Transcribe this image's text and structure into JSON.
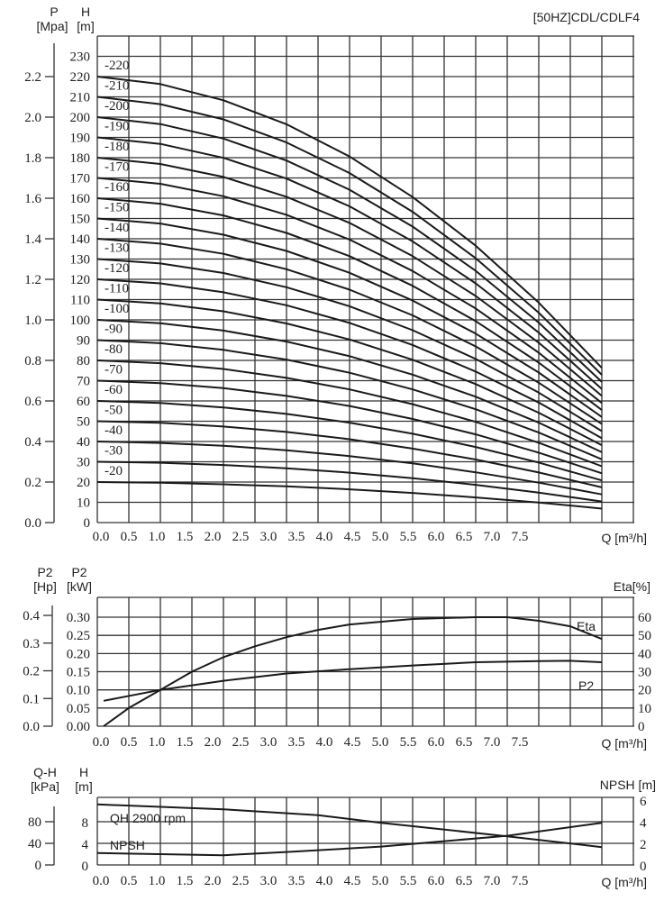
{
  "chart_data": [
    {
      "type": "line",
      "title": "[50HZ]CDL/CDLF4",
      "xlabel": "Q [m³/h]",
      "ylabel_left_outer": {
        "symbol": "P",
        "unit": "[Mpa]"
      },
      "ylabel_left": {
        "symbol": "H",
        "unit": "[m]"
      },
      "x_ticks": [
        "0.0",
        "0.5",
        "1.0",
        "1.5",
        "2.0",
        "2.5",
        "3.0",
        "3.5",
        "4.0",
        "4.5",
        "5.0",
        "5.5",
        "6.0",
        "6.5",
        "7.0",
        "7.5"
      ],
      "h_ticks": [
        "0",
        "10",
        "20",
        "30",
        "40",
        "50",
        "60",
        "70",
        "80",
        "90",
        "100",
        "110",
        "120",
        "130",
        "140",
        "150",
        "160",
        "170",
        "180",
        "190",
        "200",
        "210",
        "220",
        "230"
      ],
      "p_ticks": [
        "0.0",
        "0.2",
        "0.4",
        "0.6",
        "0.8",
        "1.0",
        "1.2",
        "1.4",
        "1.6",
        "1.8",
        "2.0",
        "2.2"
      ],
      "xlim": [
        0,
        8.5
      ],
      "ylim": [
        0,
        240
      ],
      "grid": true,
      "x": [
        0,
        1,
        2,
        3,
        4,
        5,
        6,
        7,
        8
      ],
      "series": [
        {
          "name": "-20",
          "values": [
            20,
            19.7,
            18.9,
            17.9,
            16.4,
            14.6,
            12.4,
            9.9,
            6.9
          ]
        },
        {
          "name": "-30",
          "values": [
            30,
            29.5,
            28.4,
            26.8,
            24.6,
            21.9,
            18.6,
            14.8,
            10.4
          ]
        },
        {
          "name": "-40",
          "values": [
            40,
            39.3,
            37.9,
            35.7,
            32.8,
            29.2,
            24.8,
            19.7,
            13.9
          ]
        },
        {
          "name": "-50",
          "values": [
            50,
            49.2,
            47.4,
            44.7,
            41.1,
            36.5,
            31.1,
            24.7,
            17.4
          ]
        },
        {
          "name": "-60",
          "values": [
            60,
            59,
            56.8,
            53.6,
            49.3,
            43.8,
            37.3,
            29.6,
            20.8
          ]
        },
        {
          "name": "-70",
          "values": [
            70,
            68.8,
            66.3,
            62.5,
            57.5,
            51.1,
            43.5,
            34.5,
            24.3
          ]
        },
        {
          "name": "-80",
          "values": [
            80,
            78.6,
            75.8,
            71.4,
            65.7,
            58.4,
            49.7,
            39.4,
            27.8
          ]
        },
        {
          "name": "-90",
          "values": [
            90,
            88.5,
            85.2,
            80.4,
            73.9,
            65.7,
            55.9,
            44.4,
            31.2
          ]
        },
        {
          "name": "-100",
          "values": [
            100,
            98.3,
            94.7,
            89.3,
            82.1,
            73,
            62.1,
            49.3,
            34.7
          ]
        },
        {
          "name": "-110",
          "values": [
            110,
            108.1,
            104.2,
            98.2,
            90.3,
            80.3,
            68.3,
            54.2,
            38.2
          ]
        },
        {
          "name": "-120",
          "values": [
            120,
            118,
            113.6,
            107.2,
            98.5,
            87.6,
            74.5,
            59.2,
            41.6
          ]
        },
        {
          "name": "-130",
          "values": [
            130,
            127.8,
            123.1,
            116.1,
            106.7,
            94.9,
            80.7,
            64.1,
            45.1
          ]
        },
        {
          "name": "-140",
          "values": [
            140,
            137.6,
            132.6,
            125,
            114.9,
            102.2,
            86.9,
            69,
            48.6
          ]
        },
        {
          "name": "-150",
          "values": [
            150,
            147.5,
            142,
            134,
            123.2,
            109.5,
            93.2,
            74,
            52.1
          ]
        },
        {
          "name": "-160",
          "values": [
            160,
            157.3,
            151.5,
            142.9,
            131.4,
            116.8,
            99.4,
            78.9,
            55.5
          ]
        },
        {
          "name": "-170",
          "values": [
            170,
            167.1,
            161,
            151.8,
            139.6,
            124.1,
            105.6,
            83.8,
            59
          ]
        },
        {
          "name": "-180",
          "values": [
            180,
            176.9,
            170.5,
            160.7,
            147.8,
            131.4,
            111.8,
            88.7,
            62.5
          ]
        },
        {
          "name": "-190",
          "values": [
            190,
            186.8,
            179.9,
            169.7,
            156,
            138.7,
            118,
            93.7,
            65.9
          ]
        },
        {
          "name": "-200",
          "values": [
            200,
            196.6,
            189.4,
            178.6,
            164.2,
            146,
            124.2,
            98.6,
            69.4
          ]
        },
        {
          "name": "-210",
          "values": [
            210,
            206.4,
            198.9,
            187.5,
            172.4,
            153.3,
            130.4,
            103.5,
            72.9
          ]
        },
        {
          "name": "-220",
          "values": [
            220,
            216.3,
            208.3,
            196.5,
            180.6,
            160.6,
            136.6,
            108.5,
            76.3
          ]
        }
      ]
    },
    {
      "type": "line",
      "xlabel": "Q [m³/h]",
      "ylabel_left_outer": {
        "symbol": "P2",
        "unit": "[Hp]"
      },
      "ylabel_left": {
        "symbol": "P2",
        "unit": "[kW]"
      },
      "ylabel_right": "Eta[%]",
      "x_ticks": [
        "0.0",
        "0.5",
        "1.0",
        "1.5",
        "2.0",
        "2.5",
        "3.0",
        "3.5",
        "4.0",
        "4.5",
        "5.0",
        "5.5",
        "6.0",
        "6.5",
        "7.0",
        "7.5"
      ],
      "kw_ticks": [
        "0.00",
        "0.05",
        "0.10",
        "0.15",
        "0.20",
        "0.25",
        "0.30"
      ],
      "hp_ticks": [
        "0.0",
        "0.1",
        "0.2",
        "0.3",
        "0.4"
      ],
      "eta_ticks": [
        "0",
        "10",
        "20",
        "30",
        "40",
        "50",
        "60"
      ],
      "grid": true,
      "series": [
        {
          "name": "Eta",
          "axis": "right",
          "x": [
            0.1,
            0.5,
            1,
            1.5,
            2,
            2.5,
            3,
            3.5,
            4,
            5,
            6,
            6.5,
            7,
            7.5,
            8
          ],
          "values": [
            0,
            10,
            20,
            30,
            38,
            44,
            49,
            53,
            56,
            59,
            60,
            60,
            58,
            55,
            48
          ]
        },
        {
          "name": "P2",
          "axis": "left",
          "x": [
            0.1,
            1,
            2,
            3,
            4,
            5,
            6,
            7,
            7.5,
            8
          ],
          "values": [
            0.07,
            0.1,
            0.125,
            0.145,
            0.157,
            0.167,
            0.176,
            0.179,
            0.18,
            0.176
          ]
        }
      ]
    },
    {
      "type": "line",
      "xlabel": "Q [m³/h]",
      "ylabel_left_outer": {
        "symbol": "Q-H",
        "unit": "[kPa]"
      },
      "ylabel_left": {
        "symbol": "H",
        "unit": "[m]"
      },
      "ylabel_right": "NPSH [m]",
      "x_ticks": [
        "0.0",
        "0.5",
        "1.0",
        "1.5",
        "2.0",
        "2.5",
        "3.0",
        "3.5",
        "4.0",
        "4.5",
        "5.0",
        "5.5",
        "6.0",
        "6.5",
        "7.0",
        "7.5"
      ],
      "h_ticks": [
        "0",
        "4",
        "8"
      ],
      "kpa_ticks": [
        "0",
        "40",
        "80"
      ],
      "npsh_ticks": [
        "0",
        "2",
        "4",
        "6"
      ],
      "grid": true,
      "series": [
        {
          "name": "QH 2900 rpm",
          "axis": "left",
          "x": [
            0,
            2,
            3.5,
            4.5,
            6.5,
            8
          ],
          "values": [
            11.2,
            10.3,
            9.2,
            7.8,
            5.3,
            3.3
          ]
        },
        {
          "name": "NPSH",
          "axis": "right",
          "x": [
            0,
            2,
            3,
            4.5,
            5.5,
            6.5,
            8
          ],
          "values": [
            1.1,
            0.9,
            1.2,
            1.7,
            2.2,
            2.7,
            3.9
          ]
        }
      ]
    }
  ]
}
